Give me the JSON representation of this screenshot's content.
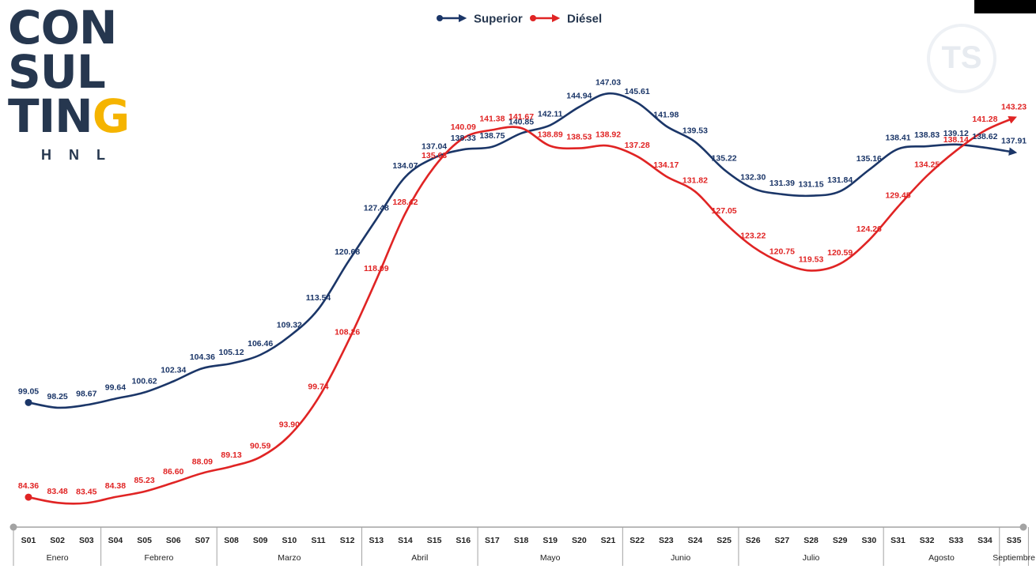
{
  "logo": {
    "lines": [
      "CON",
      "SUL",
      "TIN"
    ],
    "accent_letter": "G",
    "subtitle": "HNL"
  },
  "watermark": "TS",
  "colors": {
    "superior": "#1b3668",
    "diesel": "#e02424",
    "logo": "#26374f",
    "accent": "#f5b400"
  },
  "chart_data": {
    "type": "line",
    "categories": [
      "S01",
      "S02",
      "S03",
      "S04",
      "S05",
      "S06",
      "S07",
      "S08",
      "S09",
      "S10",
      "S11",
      "S12",
      "S13",
      "S14",
      "S15",
      "S16",
      "S17",
      "S18",
      "S19",
      "S20",
      "S21",
      "S22",
      "S23",
      "S24",
      "S25",
      "S26",
      "S27",
      "S28",
      "S29",
      "S30",
      "S31",
      "S32",
      "S33",
      "S34",
      "S35"
    ],
    "series": [
      {
        "name": "Superior",
        "color": "#1b3668",
        "values": [
          99.05,
          98.25,
          98.67,
          99.64,
          100.62,
          102.34,
          104.36,
          105.12,
          106.46,
          109.32,
          113.54,
          120.68,
          127.48,
          134.07,
          137.04,
          138.33,
          138.75,
          140.85,
          142.11,
          144.94,
          147.03,
          145.61,
          141.98,
          139.53,
          135.22,
          132.3,
          131.39,
          131.15,
          131.84,
          135.16,
          138.41,
          138.83,
          139.12,
          138.62,
          137.91
        ]
      },
      {
        "name": "Diésel",
        "color": "#e02424",
        "values": [
          84.36,
          83.48,
          83.45,
          84.38,
          85.23,
          86.6,
          88.09,
          89.13,
          90.59,
          93.9,
          99.74,
          108.26,
          118.09,
          128.42,
          135.63,
          140.09,
          141.38,
          141.67,
          138.89,
          138.53,
          138.92,
          137.28,
          134.17,
          131.82,
          127.05,
          123.22,
          120.75,
          119.53,
          120.59,
          124.26,
          129.45,
          134.25,
          138.14,
          141.28,
          143.23
        ]
      }
    ],
    "months": [
      {
        "label": "Enero",
        "start": 0,
        "end": 2
      },
      {
        "label": "Febrero",
        "start": 3,
        "end": 6
      },
      {
        "label": "Marzo",
        "start": 7,
        "end": 11
      },
      {
        "label": "Abril",
        "start": 12,
        "end": 15
      },
      {
        "label": "Mayo",
        "start": 16,
        "end": 20
      },
      {
        "label": "Junio",
        "start": 21,
        "end": 24
      },
      {
        "label": "Julio",
        "start": 25,
        "end": 29
      },
      {
        "label": "Agosto",
        "start": 30,
        "end": 33
      },
      {
        "label": "Septiembre",
        "start": 34,
        "end": 34
      }
    ],
    "legend_position": "top-center",
    "grid": false
  }
}
